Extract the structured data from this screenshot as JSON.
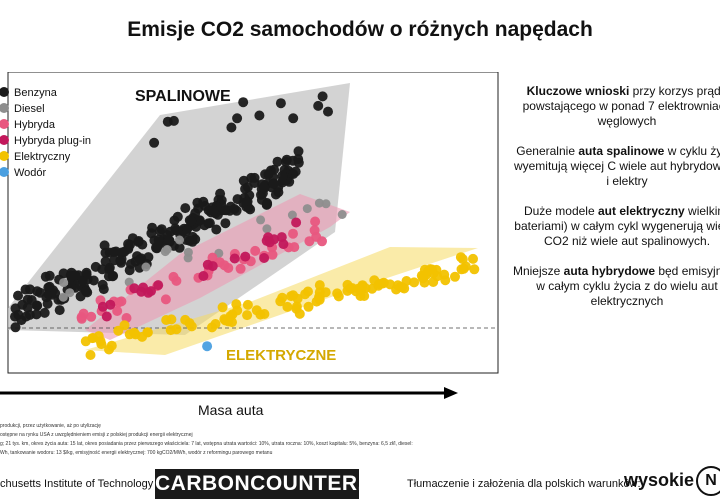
{
  "title": "Emisje CO2 samochodów o różnych napędach",
  "side_text": [
    {
      "bold": "Kluczowe wnioski",
      "rest": " przy korzys prądu powstającego w ponad 7 elektrowniach węglowych"
    },
    {
      "pre": "Generalnie ",
      "bold": "auta spalinowe",
      "rest": " w cyklu życia wyemitują więcej C wiele aut hybrydowych i elektry"
    },
    {
      "pre": "Duże modele ",
      "bold": "aut elektryczny",
      "rest": " wielkimi bateriami) w całym cykl wygenerują więcej CO2 niż wiele aut spalinowych."
    },
    {
      "pre": "Mniejsze ",
      "bold": "auta hybrydowe",
      "rest": " będ emisyjność w całym cyklu życia z do wielu aut elektrycznych"
    }
  ],
  "x_axis_label": "Masa auta",
  "notes": [
    "produkcji, przez użytkowanie, aż po utylizację",
    "ostępne na rynku USA z uwzględnieniem emisji z polskiej produkcji energii elektrycznej",
    "g; 21 tys. km, okres życia auta: 15 lat, okres posiadania przez pierwszego właściciela: 7 lat, wstępna utrata wartości: 10%, utrata roczna: 10%, koszt kapitału: 5%, benzyna: 6,5 zł/l, diesel:",
    "Wh, tankowanie wodoru: 13 $/kg, emisyjność energii elektrycznej: 700 kgCO2/MWh, wodór z reformingu parowego metanu"
  ],
  "footer": {
    "mit": "chusetts Institute of Technology",
    "logo": "CARBONCOUNTER.com",
    "credit": "Tłumaczenie i założenia dla polskich warunków:",
    "brand_text": "wysokie",
    "brand_mark": "N"
  },
  "chart_data": {
    "type": "scatter",
    "title": "Emisje CO2 samochodów o różnych napędach",
    "xlabel": "Masa auta",
    "ylabel": "",
    "grid": false,
    "legend_position": "top-left",
    "annotations": [
      "SPALINOWE",
      "ELEKTRYCZNE"
    ],
    "series": [
      {
        "name": "Benzyna",
        "color": "#1a1a1a"
      },
      {
        "name": "Diesel",
        "color": "#8e8e8e"
      },
      {
        "name": "Hybryda",
        "color": "#e8577f"
      },
      {
        "name": "Hybryda plug-in",
        "color": "#c2185b"
      },
      {
        "name": "Elektryczny",
        "color": "#f2c200"
      },
      {
        "name": "Wodór",
        "color": "#4a9fe0"
      }
    ]
  }
}
